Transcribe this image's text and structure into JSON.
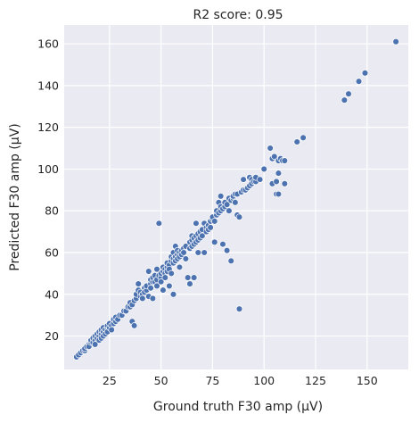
{
  "chart_data": {
    "type": "scatter",
    "title": "R2 score: 0.95",
    "xlabel": "Ground truth F30 amp (μV)",
    "ylabel": "Predicted F30 amp (μV)",
    "xlim": [
      3,
      170
    ],
    "ylim": [
      4,
      169
    ],
    "xticks": [
      25,
      50,
      75,
      100,
      125,
      150
    ],
    "yticks": [
      20,
      40,
      60,
      80,
      100,
      120,
      140,
      160
    ],
    "grid": true,
    "point_color": "#4c72b0",
    "background_color": "#eaeaf2",
    "points": [
      [
        9,
        10
      ],
      [
        10,
        11
      ],
      [
        11,
        12
      ],
      [
        12,
        13
      ],
      [
        13,
        13
      ],
      [
        13,
        14
      ],
      [
        14,
        15
      ],
      [
        15,
        16
      ],
      [
        15,
        15
      ],
      [
        16,
        17
      ],
      [
        16,
        18
      ],
      [
        17,
        17
      ],
      [
        17,
        19
      ],
      [
        18,
        18
      ],
      [
        18,
        20
      ],
      [
        18,
        16
      ],
      [
        19,
        19
      ],
      [
        19,
        21
      ],
      [
        20,
        20
      ],
      [
        20,
        22
      ],
      [
        20,
        18
      ],
      [
        21,
        21
      ],
      [
        21,
        23
      ],
      [
        21,
        19
      ],
      [
        22,
        22
      ],
      [
        22,
        24
      ],
      [
        22,
        20
      ],
      [
        23,
        23
      ],
      [
        23,
        21
      ],
      [
        24,
        24
      ],
      [
        24,
        22
      ],
      [
        24,
        25
      ],
      [
        25,
        24
      ],
      [
        25,
        26
      ],
      [
        26,
        25
      ],
      [
        26,
        23
      ],
      [
        27,
        26
      ],
      [
        27,
        28
      ],
      [
        28,
        27
      ],
      [
        28,
        29
      ],
      [
        29,
        28
      ],
      [
        30,
        30
      ],
      [
        31,
        30
      ],
      [
        32,
        32
      ],
      [
        33,
        32
      ],
      [
        34,
        34
      ],
      [
        35,
        34
      ],
      [
        35,
        36
      ],
      [
        36,
        35
      ],
      [
        36,
        27
      ],
      [
        37,
        25
      ],
      [
        37,
        37
      ],
      [
        38,
        38
      ],
      [
        38,
        40
      ],
      [
        39,
        45
      ],
      [
        39,
        42
      ],
      [
        40,
        39
      ],
      [
        40,
        41
      ],
      [
        41,
        40
      ],
      [
        41,
        38
      ],
      [
        42,
        43
      ],
      [
        42,
        41
      ],
      [
        43,
        42
      ],
      [
        43,
        44
      ],
      [
        44,
        51
      ],
      [
        44,
        39
      ],
      [
        45,
        45
      ],
      [
        45,
        47
      ],
      [
        45,
        43
      ],
      [
        46,
        46
      ],
      [
        46,
        48
      ],
      [
        46,
        38
      ],
      [
        47,
        46
      ],
      [
        47,
        49
      ],
      [
        48,
        47
      ],
      [
        48,
        52
      ],
      [
        48,
        44
      ],
      [
        49,
        74
      ],
      [
        49,
        49
      ],
      [
        50,
        48
      ],
      [
        50,
        50
      ],
      [
        50,
        46
      ],
      [
        51,
        51
      ],
      [
        51,
        42
      ],
      [
        51,
        53
      ],
      [
        52,
        52
      ],
      [
        52,
        50
      ],
      [
        52,
        48
      ],
      [
        53,
        53
      ],
      [
        53,
        55
      ],
      [
        53,
        51
      ],
      [
        54,
        54
      ],
      [
        54,
        52
      ],
      [
        54,
        44
      ],
      [
        55,
        56
      ],
      [
        55,
        50
      ],
      [
        55,
        58
      ],
      [
        56,
        57
      ],
      [
        56,
        55
      ],
      [
        56,
        40
      ],
      [
        56,
        60
      ],
      [
        57,
        58
      ],
      [
        57,
        56
      ],
      [
        57,
        63
      ],
      [
        58,
        59
      ],
      [
        58,
        57
      ],
      [
        58,
        61
      ],
      [
        59,
        60
      ],
      [
        59,
        58
      ],
      [
        59,
        53
      ],
      [
        60,
        61
      ],
      [
        60,
        59
      ],
      [
        61,
        62
      ],
      [
        61,
        60
      ],
      [
        62,
        63
      ],
      [
        62,
        57
      ],
      [
        63,
        48
      ],
      [
        64,
        65
      ],
      [
        64,
        62
      ],
      [
        64,
        45
      ],
      [
        65,
        66
      ],
      [
        65,
        63
      ],
      [
        65,
        68
      ],
      [
        66,
        67
      ],
      [
        66,
        64
      ],
      [
        66,
        48
      ],
      [
        67,
        68
      ],
      [
        67,
        65
      ],
      [
        67,
        74
      ],
      [
        68,
        69
      ],
      [
        68,
        66
      ],
      [
        68,
        60
      ],
      [
        69,
        70
      ],
      [
        69,
        67
      ],
      [
        70,
        71
      ],
      [
        70,
        68
      ],
      [
        71,
        74
      ],
      [
        71,
        60
      ],
      [
        72,
        72
      ],
      [
        72,
        70
      ],
      [
        73,
        73
      ],
      [
        73,
        71
      ],
      [
        74,
        75
      ],
      [
        74,
        72
      ],
      [
        75,
        76
      ],
      [
        75,
        77
      ],
      [
        76,
        75
      ],
      [
        76,
        65
      ],
      [
        77,
        78
      ],
      [
        77,
        80
      ],
      [
        78,
        79
      ],
      [
        78,
        84
      ],
      [
        79,
        80
      ],
      [
        79,
        82
      ],
      [
        79,
        87
      ],
      [
        80,
        81
      ],
      [
        80,
        64
      ],
      [
        81,
        82
      ],
      [
        81,
        84
      ],
      [
        82,
        83
      ],
      [
        82,
        61
      ],
      [
        83,
        86
      ],
      [
        83,
        80
      ],
      [
        84,
        56
      ],
      [
        84,
        85
      ],
      [
        85,
        86
      ],
      [
        85,
        87
      ],
      [
        86,
        88
      ],
      [
        86,
        84
      ],
      [
        87,
        78
      ],
      [
        87,
        88
      ],
      [
        88,
        33
      ],
      [
        88,
        77
      ],
      [
        89,
        89
      ],
      [
        90,
        90
      ],
      [
        90,
        95
      ],
      [
        91,
        90
      ],
      [
        92,
        91
      ],
      [
        93,
        92
      ],
      [
        93,
        96
      ],
      [
        94,
        95
      ],
      [
        94,
        93
      ],
      [
        95,
        94
      ],
      [
        96,
        94
      ],
      [
        96,
        96
      ],
      [
        98,
        95
      ],
      [
        100,
        100
      ],
      [
        103,
        110
      ],
      [
        104,
        105
      ],
      [
        104,
        93
      ],
      [
        105,
        106
      ],
      [
        106,
        94
      ],
      [
        106,
        88
      ],
      [
        107,
        104
      ],
      [
        107,
        98
      ],
      [
        107,
        88
      ],
      [
        108,
        105
      ],
      [
        109,
        104
      ],
      [
        110,
        104
      ],
      [
        110,
        93
      ],
      [
        116,
        113
      ],
      [
        119,
        115
      ],
      [
        139,
        133
      ],
      [
        141,
        136
      ],
      [
        146,
        142
      ],
      [
        149,
        146
      ],
      [
        164,
        161
      ]
    ]
  }
}
